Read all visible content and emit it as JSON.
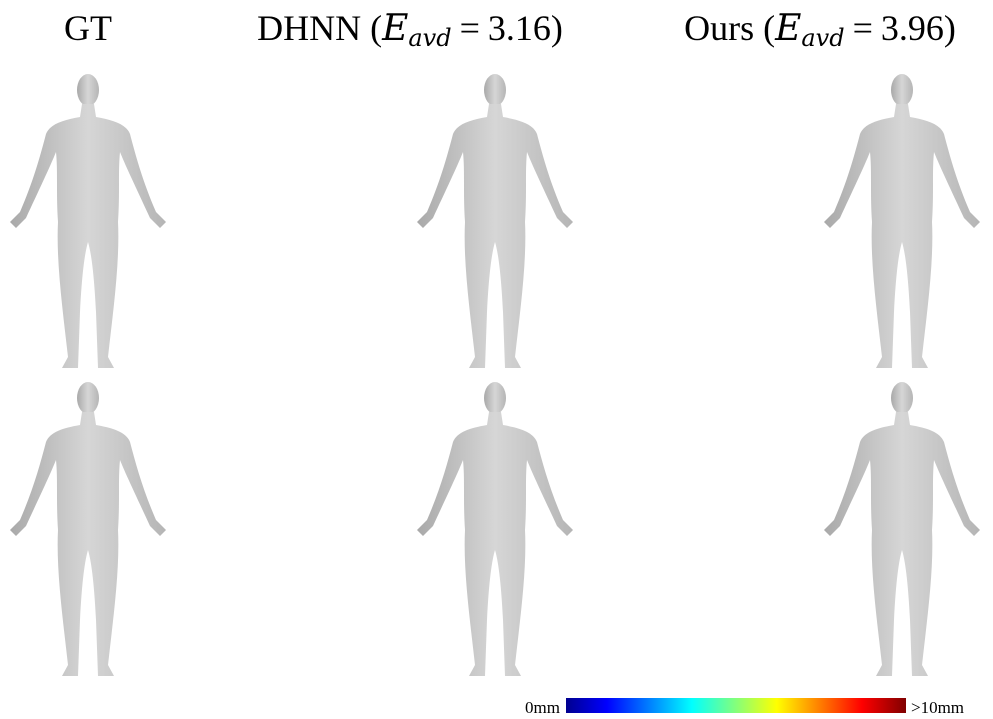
{
  "header": {
    "columns": [
      {
        "label": "GT"
      },
      {
        "prefix": "DHNN (",
        "symbol": "E",
        "subscript": "avd",
        "relation": "=",
        "value": 3.16,
        "suffix": ")"
      },
      {
        "prefix": "Ours (",
        "symbol": "E",
        "subscript": "avd",
        "relation": "=",
        "value": 3.96,
        "suffix": ")"
      }
    ]
  },
  "colorbar": {
    "min_label": "0mm",
    "max_label": ">10mm"
  }
}
